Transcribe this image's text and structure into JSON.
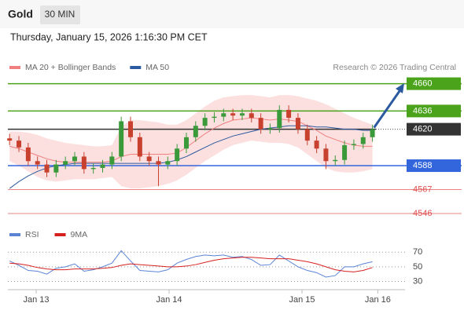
{
  "header": {
    "instrument": "Gold",
    "timeframe": "30 MIN",
    "date": "Thursday, January 15, 2026 1:16:30 PM CET"
  },
  "chart_data": [
    {
      "type": "candlestick",
      "legend": [
        {
          "name": "MA 20 + Bollinger Bands",
          "color": "#f08080"
        },
        {
          "name": "MA 50",
          "color": "#2c5aa0"
        }
      ],
      "source": "Research © 2026 Trading Central",
      "x": [
        -0.2,
        -0.13,
        -0.06,
        0.01,
        0.08,
        0.15,
        0.22,
        0.29,
        0.36,
        0.43,
        0.5,
        0.57,
        0.64,
        0.71,
        0.78,
        0.85,
        0.92,
        0.99,
        1.06,
        1.13,
        1.2,
        1.27,
        1.34,
        1.41,
        1.48,
        1.55,
        1.62,
        1.69,
        1.76,
        1.83,
        1.9,
        1.97,
        2.04,
        2.11,
        2.18,
        2.25,
        2.32,
        2.39,
        2.46,
        2.53
      ],
      "xlim": [
        -0.213,
        2.775
      ],
      "xticks": [
        {
          "value": 0,
          "label": "Jan 13"
        },
        {
          "value": 1,
          "label": "Jan 14"
        },
        {
          "value": 2,
          "label": "Jan 15"
        },
        {
          "value": 2.57,
          "label": "Jan 16"
        }
      ],
      "ylim": [
        4537,
        4668
      ],
      "up_color": "#3a9a3a",
      "down_color": "#c8412f",
      "open": [
        4612,
        4610,
        4604,
        4592,
        4589,
        4582,
        4589,
        4592,
        4596,
        4585,
        4586,
        4589,
        4596,
        4627,
        4613,
        4596,
        4592,
        4589,
        4592,
        4603,
        4613,
        4623,
        4630,
        4631,
        4634,
        4632,
        4634,
        4630,
        4620,
        4621,
        4637,
        4630,
        4620,
        4610,
        4603,
        4592,
        4593,
        4606,
        4607,
        4613
      ],
      "high": [
        4616,
        4614,
        4608,
        4596,
        4593,
        4593,
        4596,
        4600,
        4600,
        4590,
        4593,
        4600,
        4631,
        4631,
        4617,
        4600,
        4596,
        4596,
        4607,
        4617,
        4627,
        4634,
        4635,
        4638,
        4638,
        4638,
        4638,
        4634,
        4625,
        4641,
        4641,
        4634,
        4624,
        4614,
        4607,
        4597,
        4610,
        4611,
        4617,
        4624
      ],
      "low": [
        4606,
        4600,
        4588,
        4585,
        4578,
        4578,
        4585,
        4588,
        4581,
        4581,
        4582,
        4585,
        4592,
        4609,
        4592,
        4588,
        4570,
        4585,
        4588,
        4599,
        4609,
        4619,
        4626,
        4627,
        4628,
        4628,
        4626,
        4616,
        4616,
        4617,
        4626,
        4616,
        4606,
        4599,
        4585,
        4588,
        4589,
        4602,
        4603,
        4609
      ],
      "close": [
        4610,
        4604,
        4592,
        4589,
        4582,
        4589,
        4592,
        4596,
        4585,
        4586,
        4589,
        4596,
        4627,
        4613,
        4596,
        4592,
        4589,
        4592,
        4603,
        4613,
        4623,
        4630,
        4631,
        4634,
        4632,
        4634,
        4630,
        4620,
        4621,
        4637,
        4630,
        4620,
        4610,
        4603,
        4592,
        4593,
        4606,
        4607,
        4613,
        4620
      ],
      "bands": {
        "color": "#fbd5d5",
        "upper": [
          4618,
          4618,
          4617,
          4615,
          4612,
          4610,
          4608,
          4607,
          4606,
          4605,
          4605,
          4606,
          4622,
          4628,
          4628,
          4627,
          4626,
          4624,
          4624,
          4628,
          4634,
          4640,
          4645,
          4648,
          4649,
          4650,
          4650,
          4649,
          4648,
          4650,
          4650,
          4649,
          4647,
          4645,
          4642,
          4638,
          4634,
          4630,
          4627,
          4624
        ],
        "lower": [
          4592,
          4588,
          4583,
          4578,
          4575,
          4574,
          4575,
          4576,
          4576,
          4576,
          4577,
          4578,
          4570,
          4568,
          4568,
          4569,
          4570,
          4572,
          4575,
          4580,
          4586,
          4592,
          4597,
          4602,
          4606,
          4608,
          4610,
          4609,
          4608,
          4608,
          4607,
          4604,
          4598,
          4592,
          4586,
          4583,
          4582,
          4582,
          4583,
          4585
        ]
      },
      "series": [
        {
          "name": "MA 20",
          "color": "#f08080",
          "values": [
            4605,
            4603,
            4600,
            4597,
            4594,
            4592,
            4591,
            4591,
            4591,
            4591,
            4591,
            4592,
            4596,
            4598,
            4598,
            4598,
            4598,
            4598,
            4599,
            4604,
            4610,
            4616,
            4621,
            4625,
            4628,
            4629,
            4630,
            4629,
            4628,
            4629,
            4628,
            4627,
            4623,
            4619,
            4614,
            4611,
            4608,
            4606,
            4605,
            4605
          ]
        },
        {
          "name": "MA 50",
          "color": "#2c5aa0",
          "values": [
            4568,
            4574,
            4579,
            4583,
            4586,
            4588,
            4589,
            4590,
            4590,
            4590,
            4590,
            4590,
            4590,
            4590,
            4590,
            4590,
            4590,
            4591,
            4593,
            4596,
            4600,
            4604,
            4608,
            4611,
            4614,
            4616,
            4618,
            4620,
            4621,
            4622,
            4623,
            4623,
            4623,
            4622,
            4622,
            4621,
            4620,
            4620,
            4619,
            4619
          ]
        }
      ],
      "levels": [
        {
          "value": 4660,
          "color": "#4aa31b",
          "style": "box"
        },
        {
          "value": 4636,
          "color": "#4aa31b",
          "style": "box"
        },
        {
          "value": 4620,
          "color": "#333333",
          "style": "current"
        },
        {
          "value": 4588,
          "color": "#3366dd",
          "style": "box"
        },
        {
          "value": 4567,
          "color": "#e05050",
          "style": "text"
        },
        {
          "value": 4546,
          "color": "#e05050",
          "style": "text"
        }
      ]
    },
    {
      "type": "line",
      "ylim": [
        22,
        82
      ],
      "yticks": [
        70,
        50,
        30
      ],
      "series": [
        {
          "name": "RSI",
          "color": "#5b84d6",
          "values": [
            58,
            52,
            45,
            44,
            40,
            48,
            50,
            54,
            44,
            46,
            50,
            55,
            72,
            58,
            45,
            44,
            43,
            46,
            55,
            60,
            64,
            66,
            65,
            66,
            63,
            64,
            60,
            52,
            53,
            66,
            58,
            50,
            45,
            42,
            36,
            38,
            50,
            50,
            54,
            57
          ]
        },
        {
          "name": "9MA",
          "color": "#d62020",
          "values": [
            55,
            54,
            52,
            49,
            47,
            46,
            46,
            47,
            47,
            47,
            48,
            49,
            52,
            54,
            53,
            52,
            51,
            50,
            50,
            51,
            53,
            56,
            59,
            61,
            62,
            63,
            63,
            62,
            61,
            61,
            61,
            59,
            57,
            54,
            50,
            46,
            44,
            43,
            45,
            49
          ]
        }
      ]
    }
  ]
}
